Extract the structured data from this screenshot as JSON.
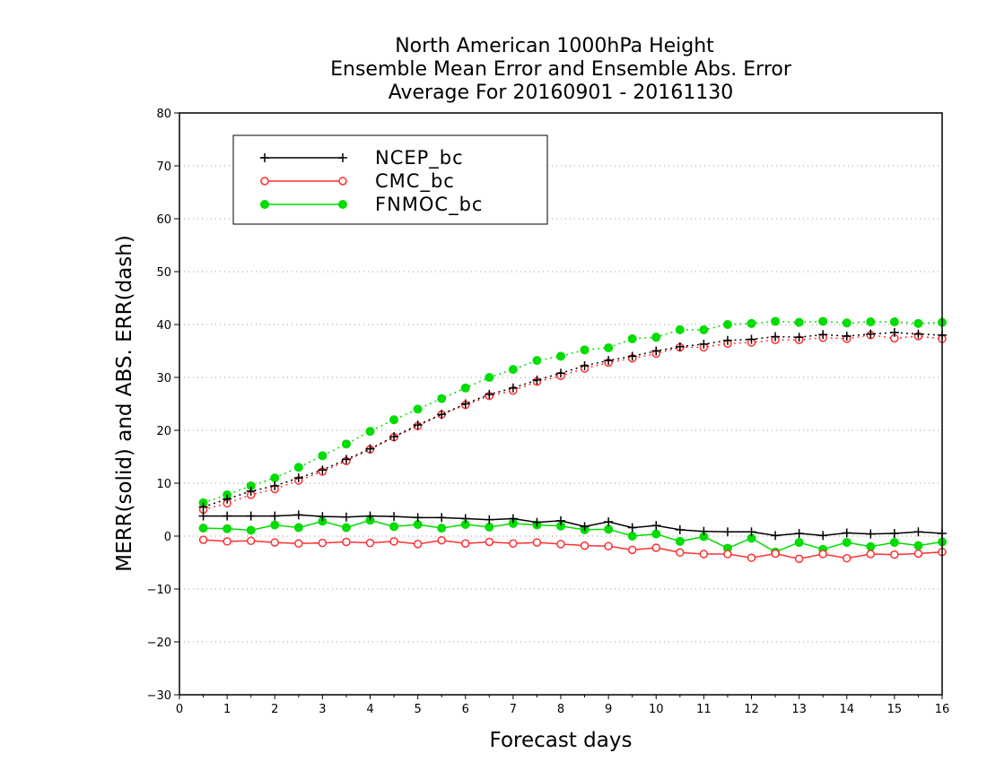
{
  "chart_data": {
    "type": "line",
    "title_lines": [
      "North American 1000hPa Height",
      "Ensemble Mean Error and Ensemble Abs. Error",
      "Average For 20160901 - 20161130"
    ],
    "xlabel": "Forecast days",
    "ylabel": "MERR(solid) and ABS. ERR(dash)",
    "xlim": [
      0,
      16
    ],
    "ylim": [
      -30,
      80
    ],
    "xticks": [
      0,
      1,
      2,
      3,
      4,
      5,
      6,
      7,
      8,
      9,
      10,
      11,
      12,
      13,
      14,
      15,
      16
    ],
    "yticks": [
      -30,
      -20,
      -10,
      0,
      10,
      20,
      30,
      40,
      50,
      60,
      70,
      80
    ],
    "grid": "horizontal dotted",
    "legend_position": "top-left",
    "x": [
      0.5,
      1,
      1.5,
      2,
      2.5,
      3,
      3.5,
      4,
      4.5,
      5,
      5.5,
      6,
      6.5,
      7,
      7.5,
      8,
      8.5,
      9,
      9.5,
      10,
      10.5,
      11,
      11.5,
      12,
      12.5,
      13,
      13.5,
      14,
      14.5,
      15,
      15.5,
      16
    ],
    "series": [
      {
        "name": "NCEP_bc",
        "color": "#000000",
        "marker": "plus",
        "merr": [
          3.8,
          3.8,
          3.8,
          3.8,
          4.0,
          3.7,
          3.6,
          3.8,
          3.7,
          3.5,
          3.5,
          3.3,
          3.1,
          3.3,
          2.6,
          2.9,
          1.8,
          2.7,
          1.6,
          2.0,
          1.2,
          0.9,
          0.8,
          0.8,
          0.1,
          0.5,
          0.1,
          0.6,
          0.4,
          0.5,
          0.8,
          0.5
        ],
        "abs_err": [
          5.5,
          7.0,
          8.5,
          9.5,
          11.0,
          12.5,
          14.5,
          16.5,
          18.8,
          21.0,
          23.0,
          25.0,
          26.8,
          28.0,
          29.5,
          30.8,
          32.2,
          33.2,
          34.0,
          35.0,
          35.8,
          36.3,
          37.0,
          37.2,
          37.7,
          37.6,
          38.1,
          37.8,
          38.2,
          38.5,
          38.2,
          38.0
        ]
      },
      {
        "name": "CMC_bc",
        "color": "#ff3030",
        "marker": "open-circle",
        "merr": [
          -0.7,
          -1.0,
          -0.9,
          -1.2,
          -1.4,
          -1.3,
          -1.1,
          -1.3,
          -1.0,
          -1.5,
          -0.8,
          -1.4,
          -1.1,
          -1.4,
          -1.2,
          -1.5,
          -1.8,
          -1.9,
          -2.6,
          -2.2,
          -3.1,
          -3.4,
          -3.4,
          -4.1,
          -3.3,
          -4.3,
          -3.4,
          -4.2,
          -3.4,
          -3.5,
          -3.3,
          -3.0
        ],
        "abs_err": [
          5.0,
          6.2,
          7.8,
          8.9,
          10.5,
          12.2,
          14.2,
          16.4,
          18.7,
          20.8,
          23.0,
          24.8,
          26.5,
          27.5,
          29.2,
          30.3,
          31.7,
          32.8,
          33.6,
          34.5,
          35.7,
          35.7,
          36.4,
          36.6,
          37.1,
          37.1,
          37.5,
          37.3,
          38.0,
          37.4,
          37.8,
          37.3
        ]
      },
      {
        "name": "FNMOC_bc",
        "color": "#00dd00",
        "marker": "filled-circle",
        "merr": [
          1.5,
          1.4,
          1.1,
          2.1,
          1.6,
          2.8,
          1.6,
          3.0,
          1.8,
          2.2,
          1.5,
          2.2,
          1.7,
          2.4,
          2.1,
          1.9,
          1.2,
          1.3,
          0.0,
          0.4,
          -1.0,
          -0.1,
          -2.3,
          -0.4,
          -3.0,
          -1.2,
          -2.5,
          -1.2,
          -2.0,
          -1.2,
          -1.8,
          -1.1
        ],
        "abs_err": [
          6.3,
          7.8,
          9.5,
          11.0,
          13.0,
          15.2,
          17.4,
          19.8,
          22.0,
          24.0,
          26.0,
          28.0,
          30.0,
          31.5,
          33.2,
          34.0,
          35.2,
          35.6,
          37.3,
          37.6,
          39.0,
          39.0,
          40.0,
          40.2,
          40.6,
          40.4,
          40.6,
          40.3,
          40.5,
          40.5,
          40.2,
          40.4
        ]
      }
    ]
  }
}
